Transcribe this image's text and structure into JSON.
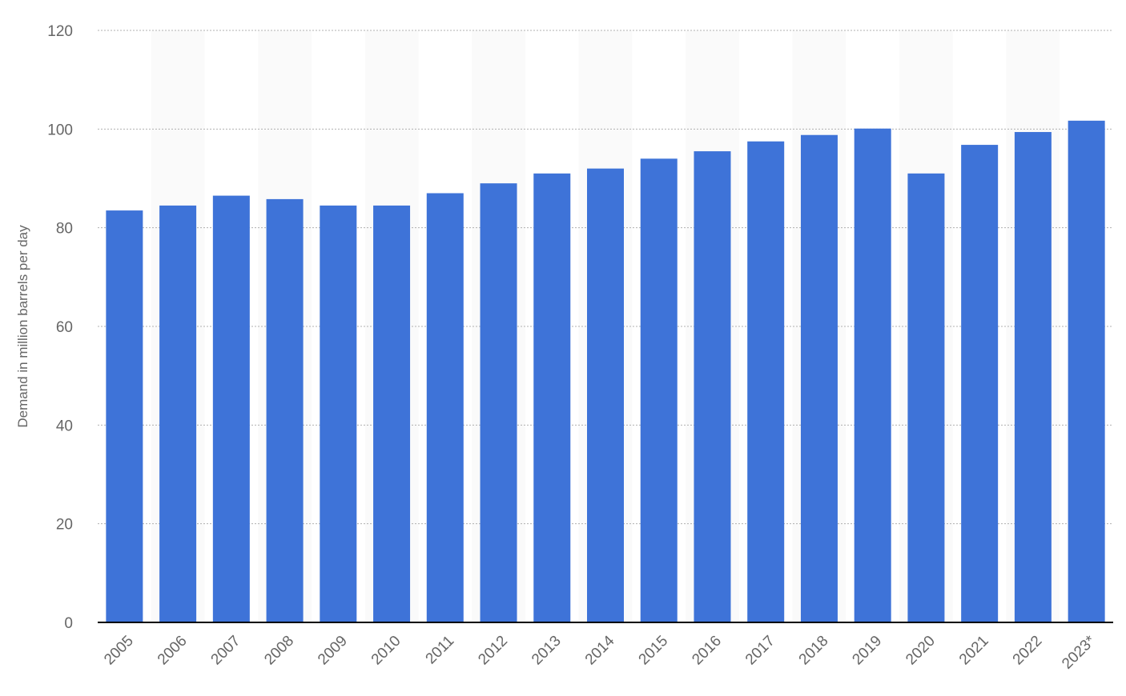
{
  "chart_data": {
    "type": "bar",
    "categories": [
      "2005",
      "2006",
      "2007",
      "2008",
      "2009",
      "2010",
      "2011",
      "2012",
      "2013",
      "2014",
      "2015",
      "2016",
      "2017",
      "2018",
      "2019",
      "2020",
      "2021",
      "2022",
      "2023*"
    ],
    "values": [
      83.5,
      84.5,
      86.5,
      85.8,
      84.5,
      84.5,
      87.0,
      89.0,
      91.0,
      92.0,
      94.0,
      95.5,
      97.5,
      98.8,
      100.1,
      91.0,
      96.8,
      99.4,
      101.7
    ],
    "yticks": [
      "0",
      "20",
      "40",
      "60",
      "80",
      "100",
      "120"
    ],
    "ylim": [
      0,
      120
    ],
    "ylabel": "Demand in million barrels per day",
    "xlabel": "",
    "title": "",
    "grid": true,
    "colors": {
      "bar": "#3e73d8",
      "grid": "#b0b0b0",
      "band": "#fafafa",
      "axis": "#000000",
      "text": "#666666"
    }
  }
}
